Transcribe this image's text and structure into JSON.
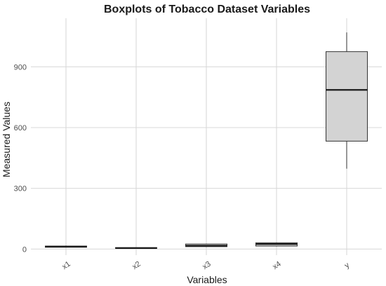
{
  "chart_data": {
    "type": "boxplot",
    "title": "Boxplots of Tobacco Dataset Variables",
    "xlabel": "Variables",
    "ylabel": "Measured Values",
    "categories": [
      "x1",
      "x2",
      "x3",
      "x4",
      "y"
    ],
    "boxes": [
      {
        "category": "x1",
        "min": 8,
        "q1": 9,
        "median": 12,
        "q3": 15,
        "max": 17
      },
      {
        "category": "x2",
        "min": 3,
        "q1": 4,
        "median": 5,
        "q3": 7,
        "max": 8
      },
      {
        "category": "x3",
        "min": 10,
        "q1": 12,
        "median": 17,
        "q3": 25,
        "max": 27
      },
      {
        "category": "x4",
        "min": 13,
        "q1": 15,
        "median": 25,
        "q3": 31,
        "max": 33
      },
      {
        "category": "y",
        "min": 397,
        "q1": 533,
        "median": 786,
        "q3": 975,
        "max": 1070
      }
    ],
    "ylim": [
      -30,
      1140
    ],
    "yticks": [
      0,
      300,
      600,
      900
    ],
    "ytick_labels": [
      "0",
      "300",
      "600",
      "900"
    ],
    "grid": true,
    "colors": {
      "box_fill": "#d3d3d3",
      "box_stroke": "#333333",
      "grid": "#d9d9d9"
    }
  }
}
